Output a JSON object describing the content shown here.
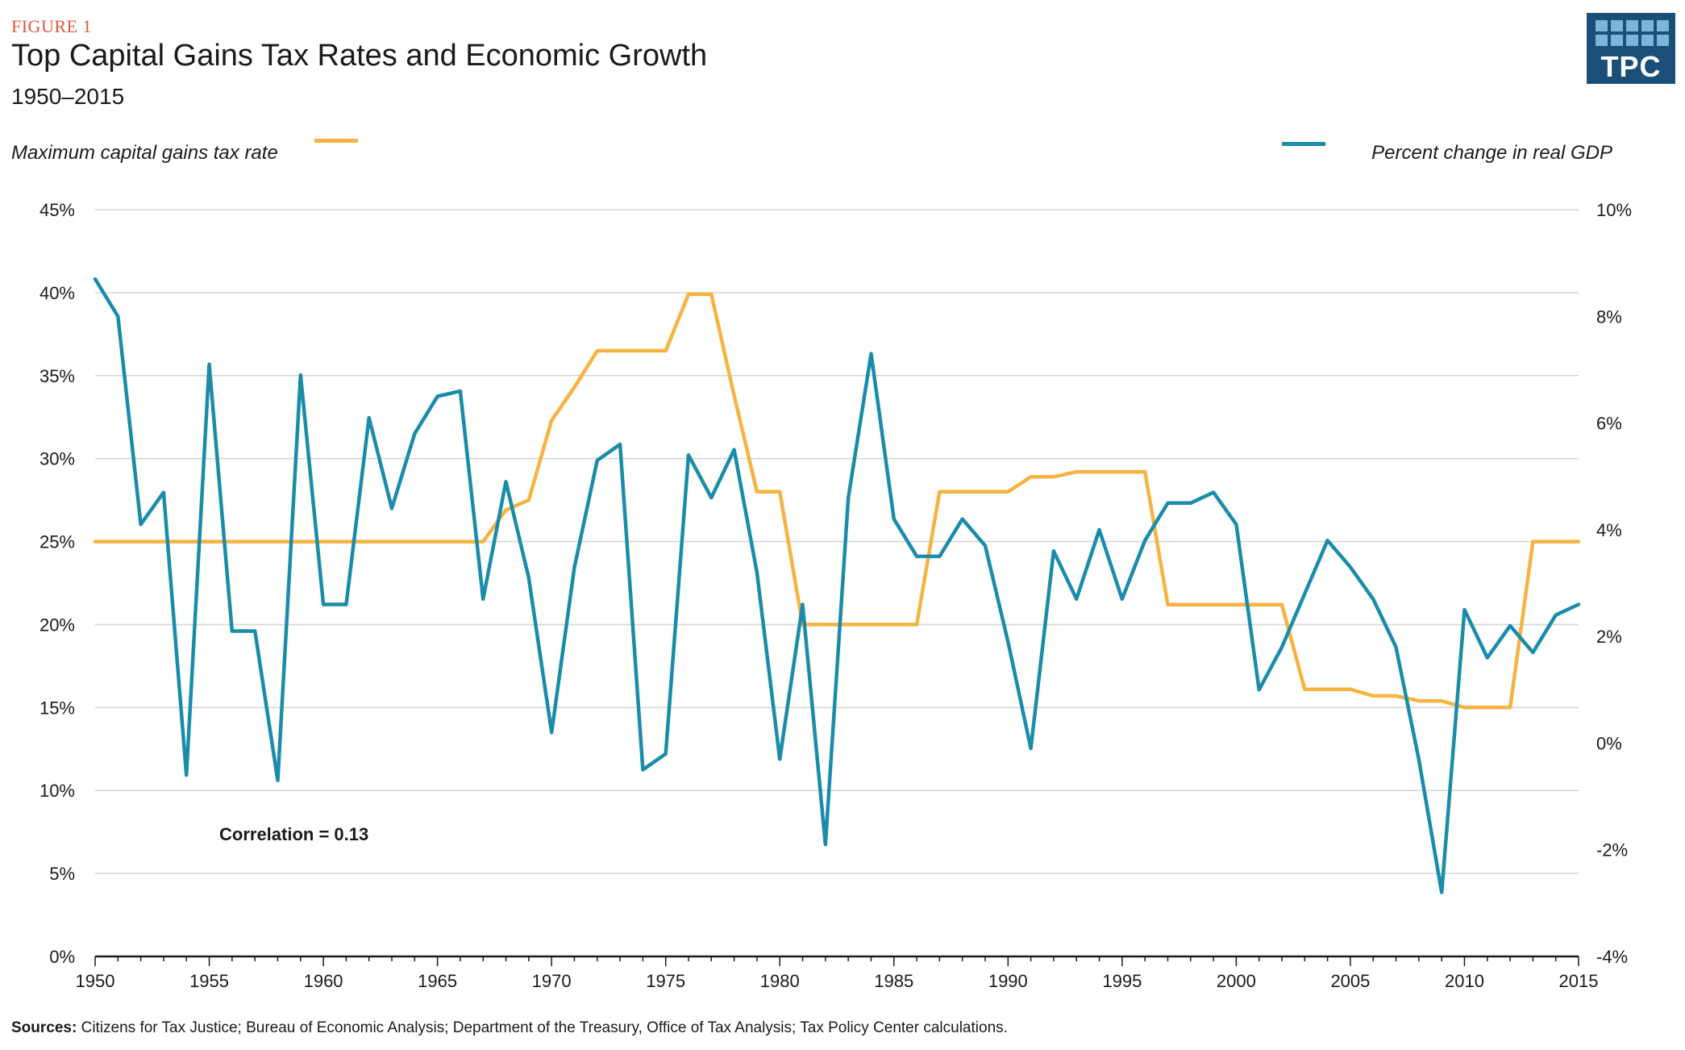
{
  "figure_label": "FIGURE 1",
  "logo": {
    "text": "TPC",
    "color": "#1a4f7a",
    "accent": "#7ab6d8"
  },
  "sources": {
    "label": "Sources:",
    "text": " Citizens for Tax Justice; Bureau of Economic Analysis; Department of the Treasury, Office of Tax Analysis; Tax Policy Center calculations."
  },
  "chart_data": {
    "type": "line",
    "title": "Top Capital Gains Tax Rates and Economic Growth",
    "subtitle": "1950–2015",
    "annotation": "Correlation = 0.13",
    "x": [
      1950,
      1951,
      1952,
      1953,
      1954,
      1955,
      1956,
      1957,
      1958,
      1959,
      1960,
      1961,
      1962,
      1963,
      1964,
      1965,
      1966,
      1967,
      1968,
      1969,
      1970,
      1971,
      1972,
      1973,
      1974,
      1975,
      1976,
      1977,
      1978,
      1979,
      1980,
      1981,
      1982,
      1983,
      1984,
      1985,
      1986,
      1987,
      1988,
      1989,
      1990,
      1991,
      1992,
      1993,
      1994,
      1995,
      1996,
      1997,
      1998,
      1999,
      2000,
      2001,
      2002,
      2003,
      2004,
      2005,
      2006,
      2007,
      2008,
      2009,
      2010,
      2011,
      2012,
      2013,
      2014,
      2015
    ],
    "x_ticks": [
      "1950",
      "1955",
      "1960",
      "1965",
      "1970",
      "1975",
      "1980",
      "1985",
      "1990",
      "1995",
      "2000",
      "2005",
      "2010",
      "2015"
    ],
    "xlim": [
      1950,
      2015
    ],
    "left_axis": {
      "ylim": [
        0,
        45
      ],
      "ticks": [
        "0%",
        "5%",
        "10%",
        "15%",
        "20%",
        "25%",
        "30%",
        "35%",
        "40%",
        "45%"
      ]
    },
    "right_axis": {
      "ylim": [
        -4,
        10
      ],
      "ticks": [
        "-4%",
        "-2%",
        "0%",
        "2%",
        "4%",
        "6%",
        "8%",
        "10%"
      ]
    },
    "grid": true,
    "series": [
      {
        "name": "Maximum capital gains tax rate",
        "axis": "left",
        "color": "#f5b342",
        "legend_position": "top-left",
        "values": [
          25,
          25,
          25,
          25,
          25,
          25,
          25,
          25,
          25,
          25,
          25,
          25,
          25,
          25,
          25,
          25,
          25,
          25,
          26.9,
          27.5,
          32.3,
          34.3,
          36.5,
          36.5,
          36.5,
          36.5,
          39.9,
          39.9,
          33.8,
          28,
          28,
          20,
          20,
          20,
          20,
          20,
          20,
          28,
          28,
          28,
          28,
          28.9,
          28.9,
          29.2,
          29.2,
          29.2,
          29.2,
          21.2,
          21.2,
          21.2,
          21.2,
          21.2,
          21.2,
          16.1,
          16.1,
          16.1,
          15.7,
          15.7,
          15.4,
          15.4,
          15,
          15,
          15,
          25,
          25,
          25
        ]
      },
      {
        "name": "Percent change in real GDP",
        "axis": "right",
        "color": "#1a8caa",
        "legend_position": "top-right",
        "values": [
          8.7,
          8.0,
          4.1,
          4.7,
          -0.6,
          7.1,
          2.1,
          2.1,
          -0.7,
          6.9,
          2.6,
          2.6,
          6.1,
          4.4,
          5.8,
          6.5,
          6.6,
          2.7,
          4.9,
          3.1,
          0.2,
          3.3,
          5.3,
          5.6,
          -0.5,
          -0.2,
          5.4,
          4.6,
          5.5,
          3.2,
          -0.3,
          2.6,
          -1.9,
          4.6,
          7.3,
          4.2,
          3.5,
          3.5,
          4.2,
          3.7,
          1.9,
          -0.1,
          3.6,
          2.7,
          4.0,
          2.7,
          3.8,
          4.5,
          4.5,
          4.7,
          4.1,
          1.0,
          1.8,
          2.8,
          3.8,
          3.3,
          2.7,
          1.8,
          -0.3,
          -2.8,
          2.5,
          1.6,
          2.2,
          1.7,
          2.4,
          2.6
        ]
      }
    ]
  }
}
